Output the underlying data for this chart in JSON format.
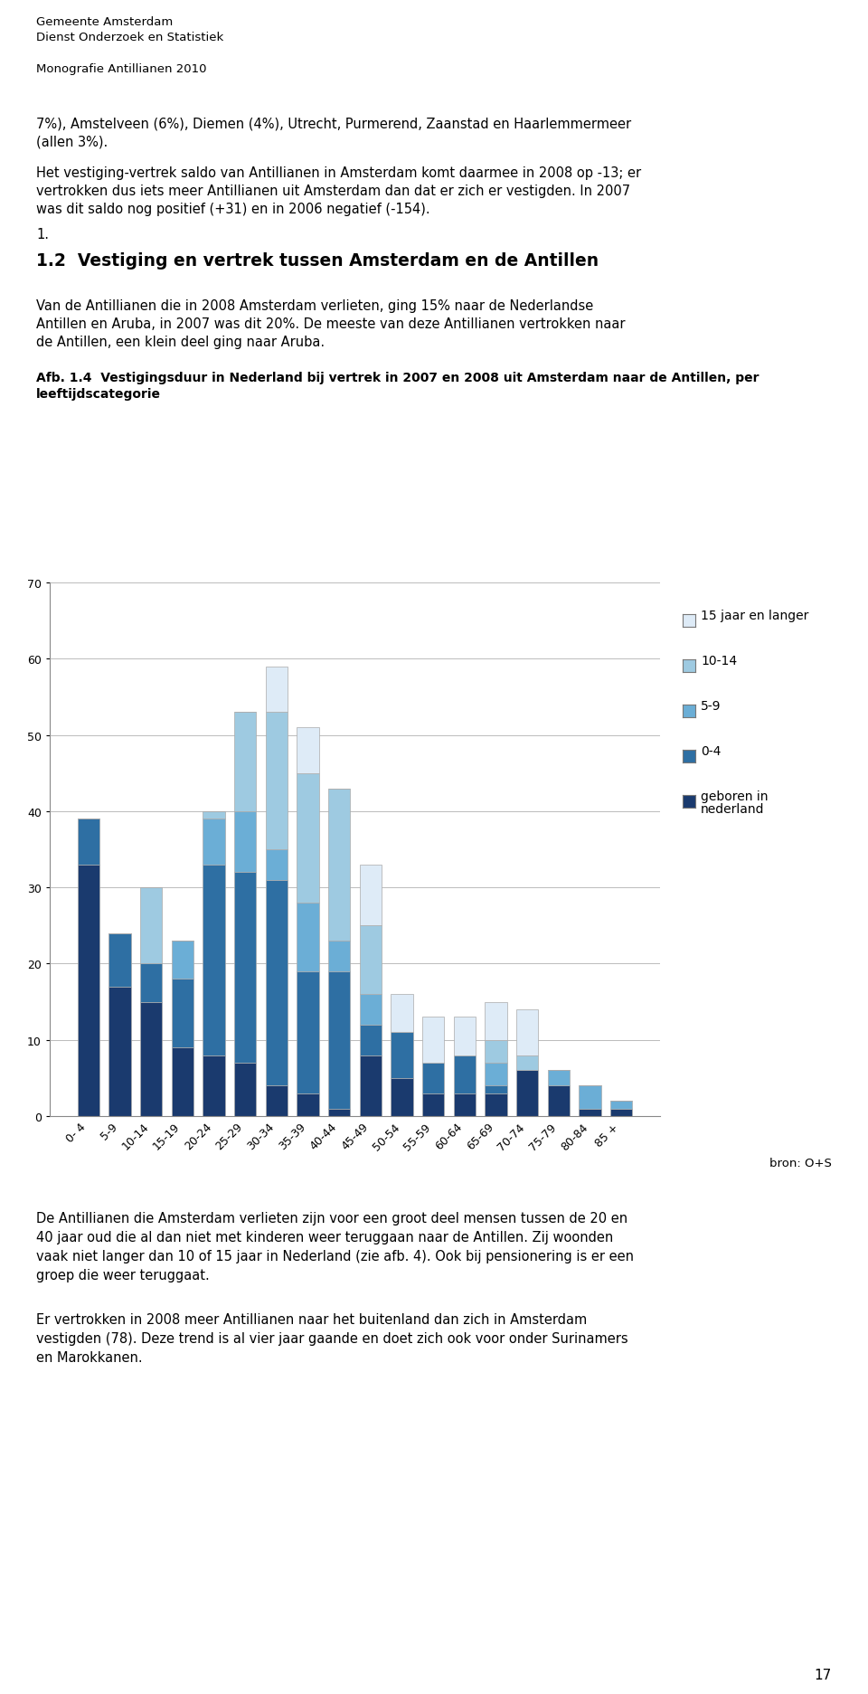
{
  "header_line1": "Gemeente Amsterdam",
  "header_line2": "Dienst Onderzoek en Statistiek",
  "header_line3": "Monografie Antillianen 2010",
  "page_number": "17",
  "para1_line1": "7%), Amstelveen (6%), Diemen (4%), Utrecht, Purmerend, Zaanstad en Haarlemmermeer",
  "para1_line2": "(allen 3%).",
  "para2_line1": "Het vestiging-vertrek saldo van Antillianen in Amsterdam komt daarmee in 2008 op -13; er",
  "para2_line2": "vertrokken dus iets meer Antillianen uit Amsterdam dan dat er zich er vestigden. In 2007",
  "para2_line3": "was dit saldo nog positief (+31) en in 2006 negatief (-154).",
  "para3": "1.",
  "section_title": "1.2  Vestiging en vertrek tussen Amsterdam en de Antillen",
  "body_line1": "Van de Antillianen die in 2008 Amsterdam verlieten, ging 15% naar de Nederlandse",
  "body_line2": "Antillen en Aruba, in 2007 was dit 20%. De meeste van deze Antillianen vertrokken naar",
  "body_line3": "de Antillen, een klein deel ging naar Aruba.",
  "caption_line1": "Afb. 1.4  Vestigingsduur in Nederland bij vertrek in 2007 en 2008 uit Amsterdam naar de Antillen, per",
  "caption_line2": "leeftijdscategorie",
  "source_text": "bron: O+S",
  "bottom1_line1": "De Antillianen die Amsterdam verlieten zijn voor een groot deel mensen tussen de 20 en",
  "bottom1_line2": "40 jaar oud die al dan niet met kinderen weer teruggaan naar de Antillen. Zij woonden",
  "bottom1_line3": "vaak niet langer dan 10 of 15 jaar in Nederland (zie afb. 4). Ook bij pensionering is er een",
  "bottom1_line4": "groep die weer teruggaat.",
  "bottom2_line1": "Er vertrokken in 2008 meer Antillianen naar het buitenland dan zich in Amsterdam",
  "bottom2_line2": "vestigden (78). Deze trend is al vier jaar gaande en doet zich ook voor onder Surinamers",
  "bottom2_line3": "en Marokkanen.",
  "categories": [
    "0- 4",
    "5-9",
    "10-14",
    "15-19",
    "20-24",
    "25-29",
    "30-34",
    "35-39",
    "40-44",
    "45-49",
    "50-54",
    "55-59",
    "60-64",
    "65-69",
    "70-74",
    "75-79",
    "80-84",
    "85 +"
  ],
  "born_nl": [
    33,
    17,
    15,
    9,
    8,
    7,
    4,
    3,
    1,
    8,
    5,
    3,
    3,
    3,
    6,
    4,
    1,
    1
  ],
  "d0_4": [
    6,
    7,
    5,
    9,
    25,
    25,
    27,
    16,
    18,
    4,
    6,
    4,
    5,
    1,
    0,
    0,
    0,
    0
  ],
  "d5_9": [
    0,
    0,
    0,
    5,
    6,
    8,
    4,
    9,
    4,
    4,
    0,
    0,
    0,
    3,
    0,
    2,
    3,
    1
  ],
  "d10_14": [
    0,
    0,
    10,
    0,
    1,
    13,
    18,
    17,
    20,
    9,
    0,
    0,
    0,
    3,
    2,
    0,
    0,
    0
  ],
  "d15_plus": [
    0,
    0,
    0,
    0,
    0,
    0,
    6,
    6,
    0,
    8,
    5,
    6,
    5,
    5,
    6,
    0,
    0,
    0
  ],
  "color_born": "#1a3a6e",
  "color_0_4": "#2e6fa3",
  "color_5_9": "#6baed6",
  "color_10_14": "#9ecae1",
  "color_15p": "#deebf7",
  "ylim": [
    0,
    70
  ],
  "yticks": [
    0,
    10,
    20,
    30,
    40,
    50,
    60,
    70
  ],
  "body_fontsize": 10.5,
  "header_fontsize": 9.5,
  "caption_fontsize": 10.0,
  "tick_fontsize": 9.0,
  "legend_fontsize": 10.0
}
